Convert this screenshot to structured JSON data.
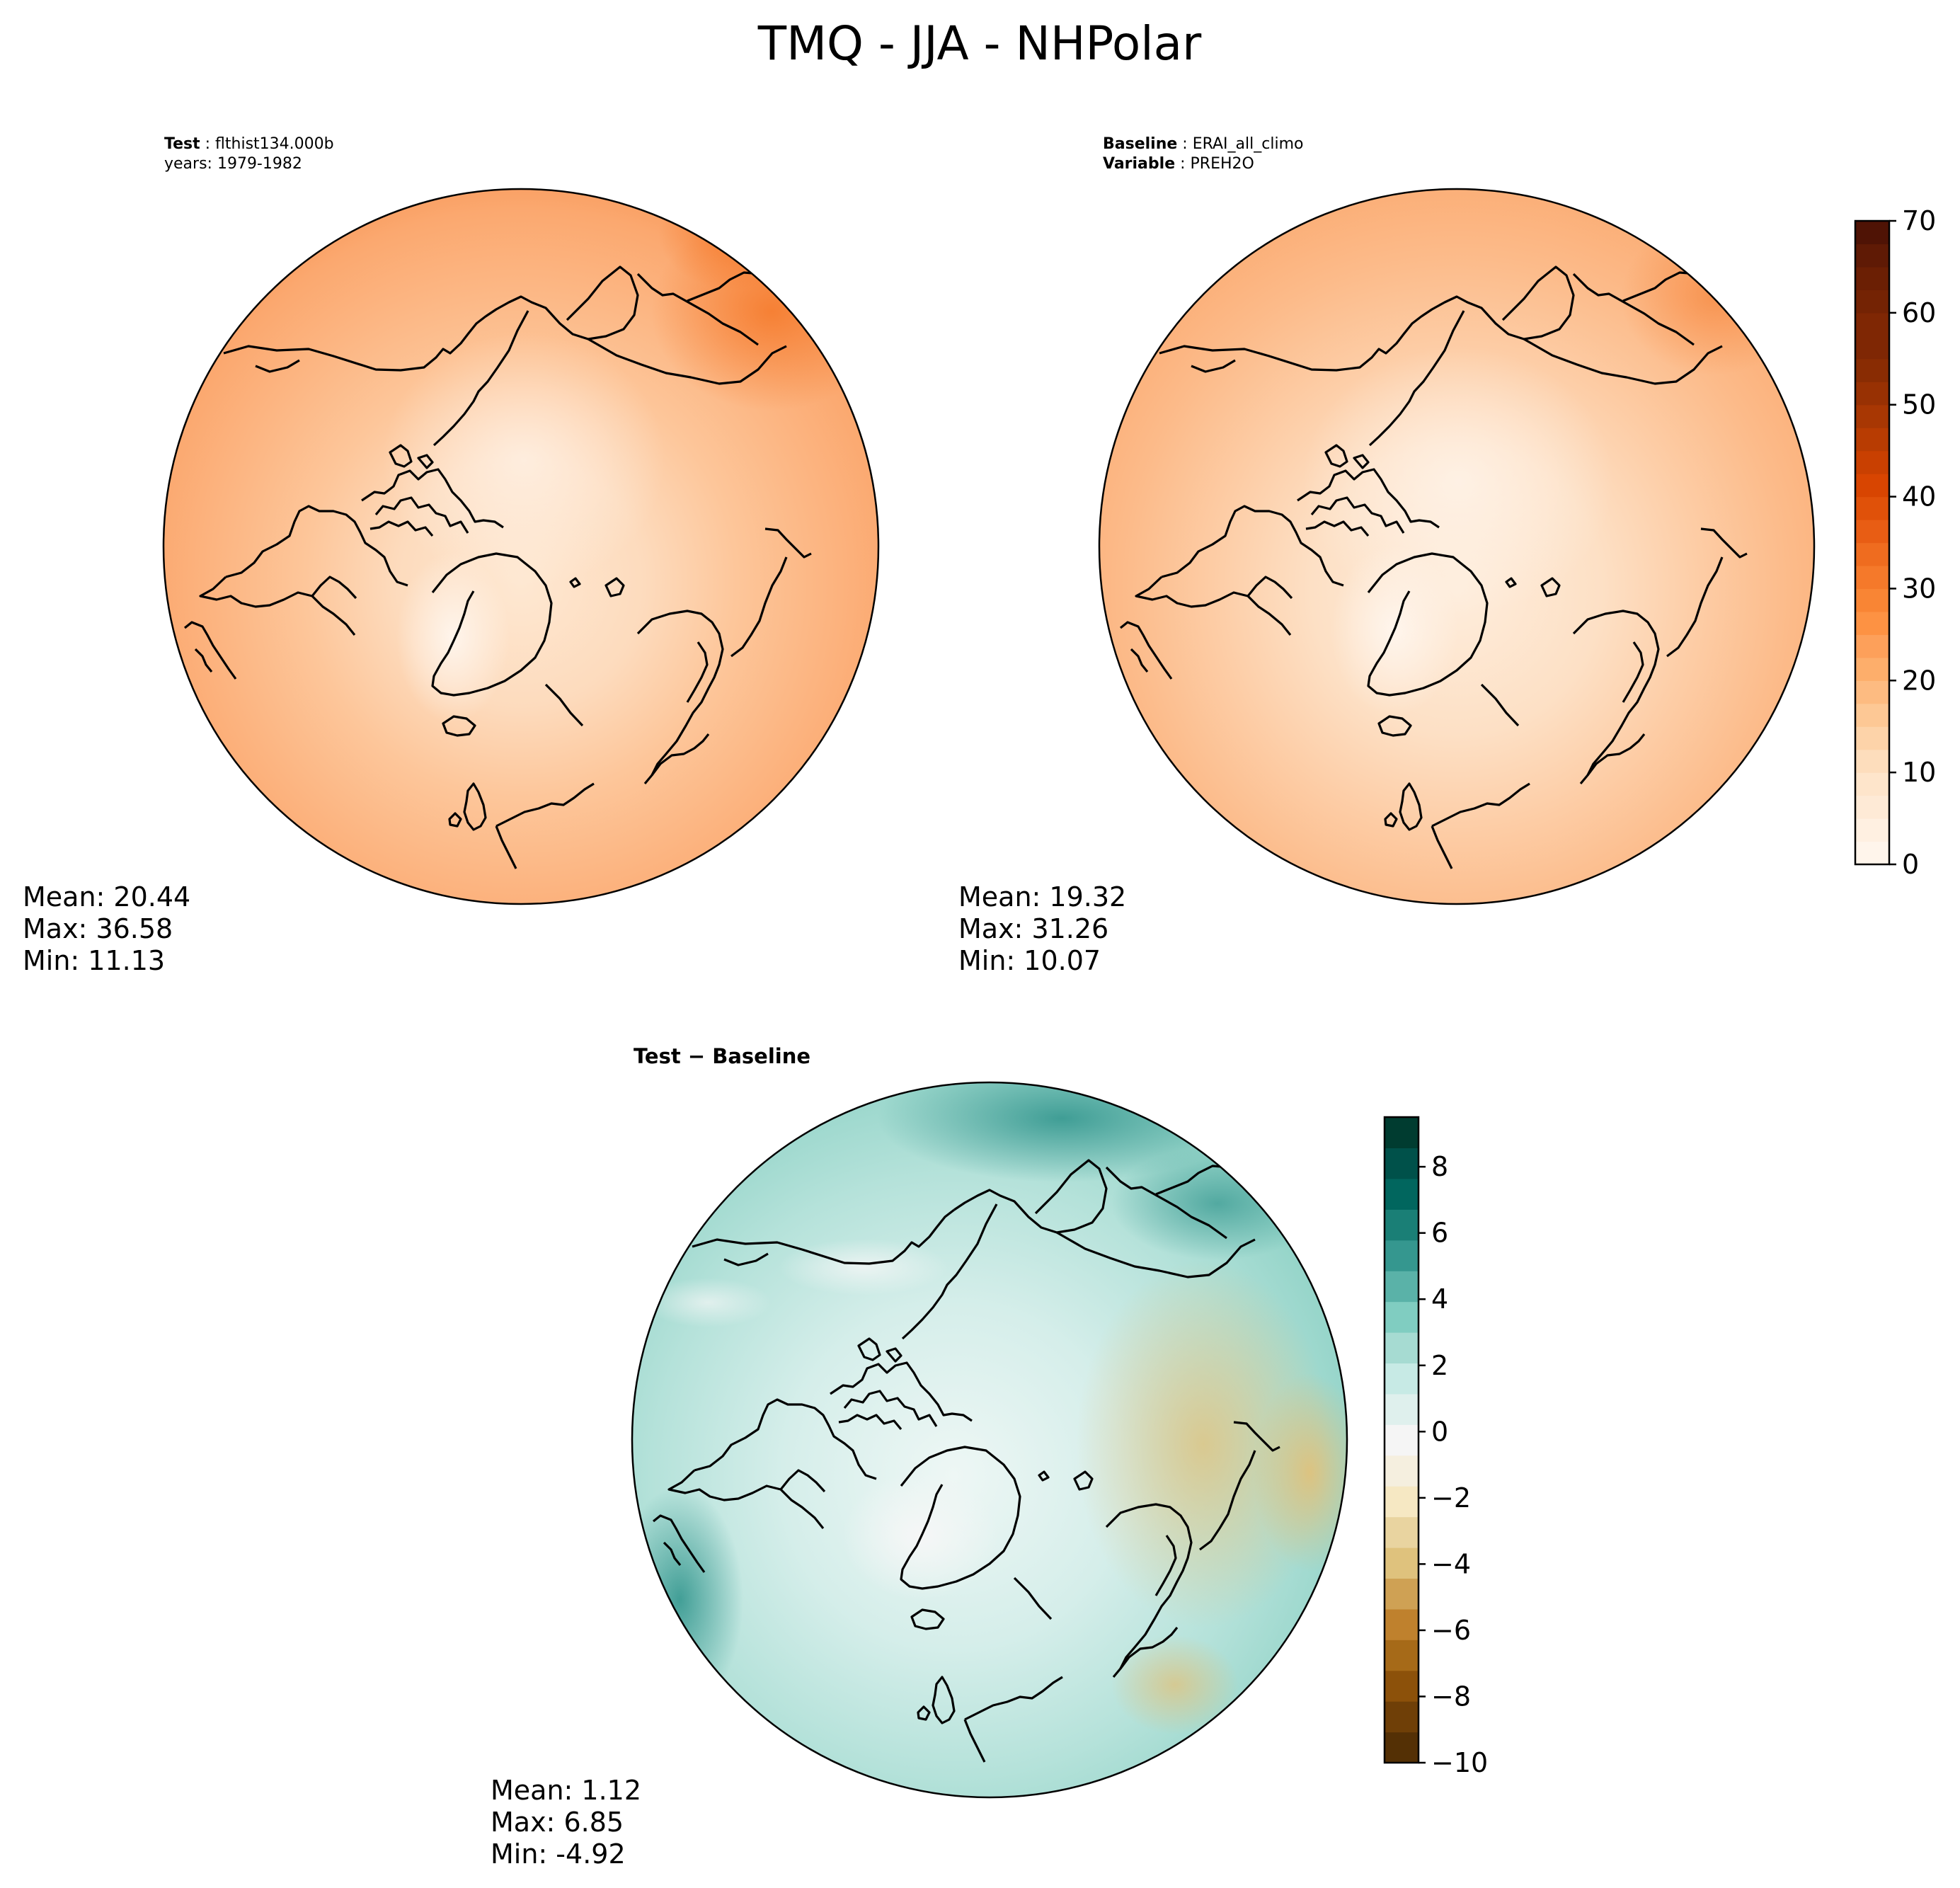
{
  "figure": {
    "title": "TMQ - JJA - NHPolar"
  },
  "panels": {
    "test": {
      "header": [
        {
          "label": "Test",
          "sep": " : ",
          "value": "flthist134.000b"
        },
        {
          "label": "",
          "sep": "",
          "value": "years: 1979-1982"
        }
      ],
      "stats": [
        "Mean: 20.44",
        "Max: 36.58",
        "Min: 11.13"
      ]
    },
    "baseline": {
      "header": [
        {
          "label": "Baseline",
          "sep": " : ",
          "value": "ERAI_all_climo"
        },
        {
          "label": "Variable",
          "sep": " : ",
          "value": "PREH2O"
        }
      ],
      "stats": [
        "Mean: 19.32",
        "Max: 31.26",
        "Min: 10.07"
      ]
    },
    "difference": {
      "title": "Test − Baseline",
      "stats": [
        "Mean:  1.12",
        "Max:  6.85",
        "Min: -4.92"
      ]
    }
  },
  "chart_data": [
    {
      "type": "heatmap",
      "name": "test",
      "projection": "North Polar Stereographic",
      "mean": 20.44,
      "max": 36.58,
      "min": 11.13,
      "colormap": "Oranges",
      "levels": [
        0,
        2.5,
        5,
        7.5,
        10,
        12.5,
        15,
        17.5,
        20,
        22.5,
        25,
        27.5,
        30,
        32.5,
        35,
        37.5,
        40,
        42.5,
        45,
        47.5,
        50,
        52.5,
        55,
        57.5,
        60,
        62.5,
        65,
        67.5,
        70
      ],
      "colorbar": {
        "ticks": [
          0,
          10,
          20,
          30,
          40,
          50,
          60,
          70
        ],
        "range": [
          0,
          70
        ],
        "shared_with": "baseline"
      }
    },
    {
      "type": "heatmap",
      "name": "baseline",
      "projection": "North Polar Stereographic",
      "mean": 19.32,
      "max": 31.26,
      "min": 10.07,
      "colormap": "Oranges",
      "colorbar": {
        "ticks": [
          0,
          10,
          20,
          30,
          40,
          50,
          60,
          70
        ],
        "range": [
          0,
          70
        ]
      }
    },
    {
      "type": "heatmap",
      "name": "difference",
      "projection": "North Polar Stereographic",
      "mean": 1.12,
      "max": 6.85,
      "min": -4.92,
      "colormap": "BrBG",
      "colorbar": {
        "ticks": [
          8,
          6,
          4,
          2,
          0,
          -2,
          -4,
          -6,
          -8,
          -10
        ],
        "range": [
          -10,
          9.5
        ]
      }
    }
  ],
  "colorbars": {
    "oranges": {
      "tick_labels": [
        "70",
        "60",
        "50",
        "40",
        "30",
        "20",
        "10",
        "0"
      ],
      "colors": [
        "#fff5eb",
        "#fff0e1",
        "#feead6",
        "#fee5cb",
        "#fdddbc",
        "#fdd3a9",
        "#fdc895",
        "#fdbb81",
        "#fdae6b",
        "#fda05a",
        "#fd9243",
        "#f98534",
        "#f5792a",
        "#ef6c1f",
        "#e85d14",
        "#e05109",
        "#d84501",
        "#c94001",
        "#b83c02",
        "#a83703",
        "#983103",
        "#892c03",
        "#7f2704",
        "#7f2704",
        "#742304",
        "#6b1f04",
        "#5f1a05",
        "#4f1305"
      ]
    },
    "brbg": {
      "tick_labels": [
        "8",
        "6",
        "4",
        "2",
        "0",
        "−2",
        "−4",
        "−6",
        "−8",
        "−10"
      ],
      "colors": [
        "#543005",
        "#6f3f07",
        "#8c510a",
        "#a66a18",
        "#bf812d",
        "#cfa154",
        "#dfc27d",
        "#e9d4a0",
        "#f6e8c3",
        "#f5efdf",
        "#f5f5f5",
        "#dff0ed",
        "#c7eae5",
        "#a6dbd2",
        "#80cdc1",
        "#5ab2a8",
        "#35978f",
        "#1a7f76",
        "#01665e",
        "#00514a",
        "#003c30"
      ]
    }
  }
}
